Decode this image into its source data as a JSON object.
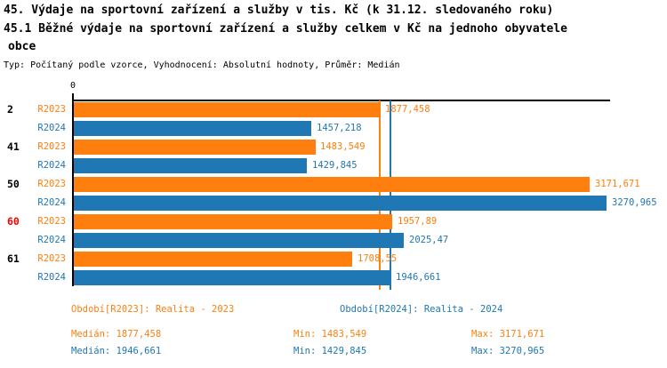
{
  "title": {
    "line1": "45. Výdaje na sportovní zařízení a služby v tis. Kč (k 31.12. sledovaného roku)",
    "line2": "45.1 Běžné výdaje na sportovní zařízení a služby celkem v Kč na jednoho obyvatele",
    "line3": "obce",
    "meta": "Typ: Počítaný podle vzorce, Vyhodnocení: Absolutní hodnoty, Průměr: Medián"
  },
  "colors": {
    "r2023": "#ff7f0e",
    "r2024": "#1f77b4",
    "highlight": "#ff0000",
    "axis": "#000000"
  },
  "chart_data": {
    "type": "bar",
    "orientation": "horizontal",
    "axis_zero_label": "0",
    "xlim": [
      0,
      3300
    ],
    "grid": false,
    "categories": [
      "2",
      "41",
      "50",
      "60",
      "61"
    ],
    "highlighted_category": "60",
    "series": [
      {
        "name": "R2023",
        "color": "#ff7f0e",
        "values": [
          1877.458,
          1483.549,
          3171.671,
          1957.89,
          1708.55
        ],
        "labels": [
          "1877,458",
          "1483,549",
          "3171,671",
          "1957,89",
          "1708,55"
        ],
        "median": 1877.458
      },
      {
        "name": "R2024",
        "color": "#1f77b4",
        "values": [
          1457.218,
          1429.845,
          3270.965,
          2025.47,
          1946.661
        ],
        "labels": [
          "1457,218",
          "1429,845",
          "3270,965",
          "2025,47",
          "1946,661"
        ],
        "median": 1946.661
      }
    ],
    "median_lines": [
      {
        "series": "R2023",
        "value": 1877.458
      },
      {
        "series": "R2024",
        "value": 1946.661
      }
    ]
  },
  "legend": {
    "r2023": "Období[R2023]: Realita - 2023",
    "r2024": "Období[R2024]: Realita - 2024"
  },
  "stats": {
    "r2023": {
      "median": "Medián: 1877,458",
      "min": "Min: 1483,549",
      "max": "Max: 3171,671"
    },
    "r2024": {
      "median": "Medián: 1946,661",
      "min": "Min: 1429,845",
      "max": "Max: 3270,965"
    }
  }
}
